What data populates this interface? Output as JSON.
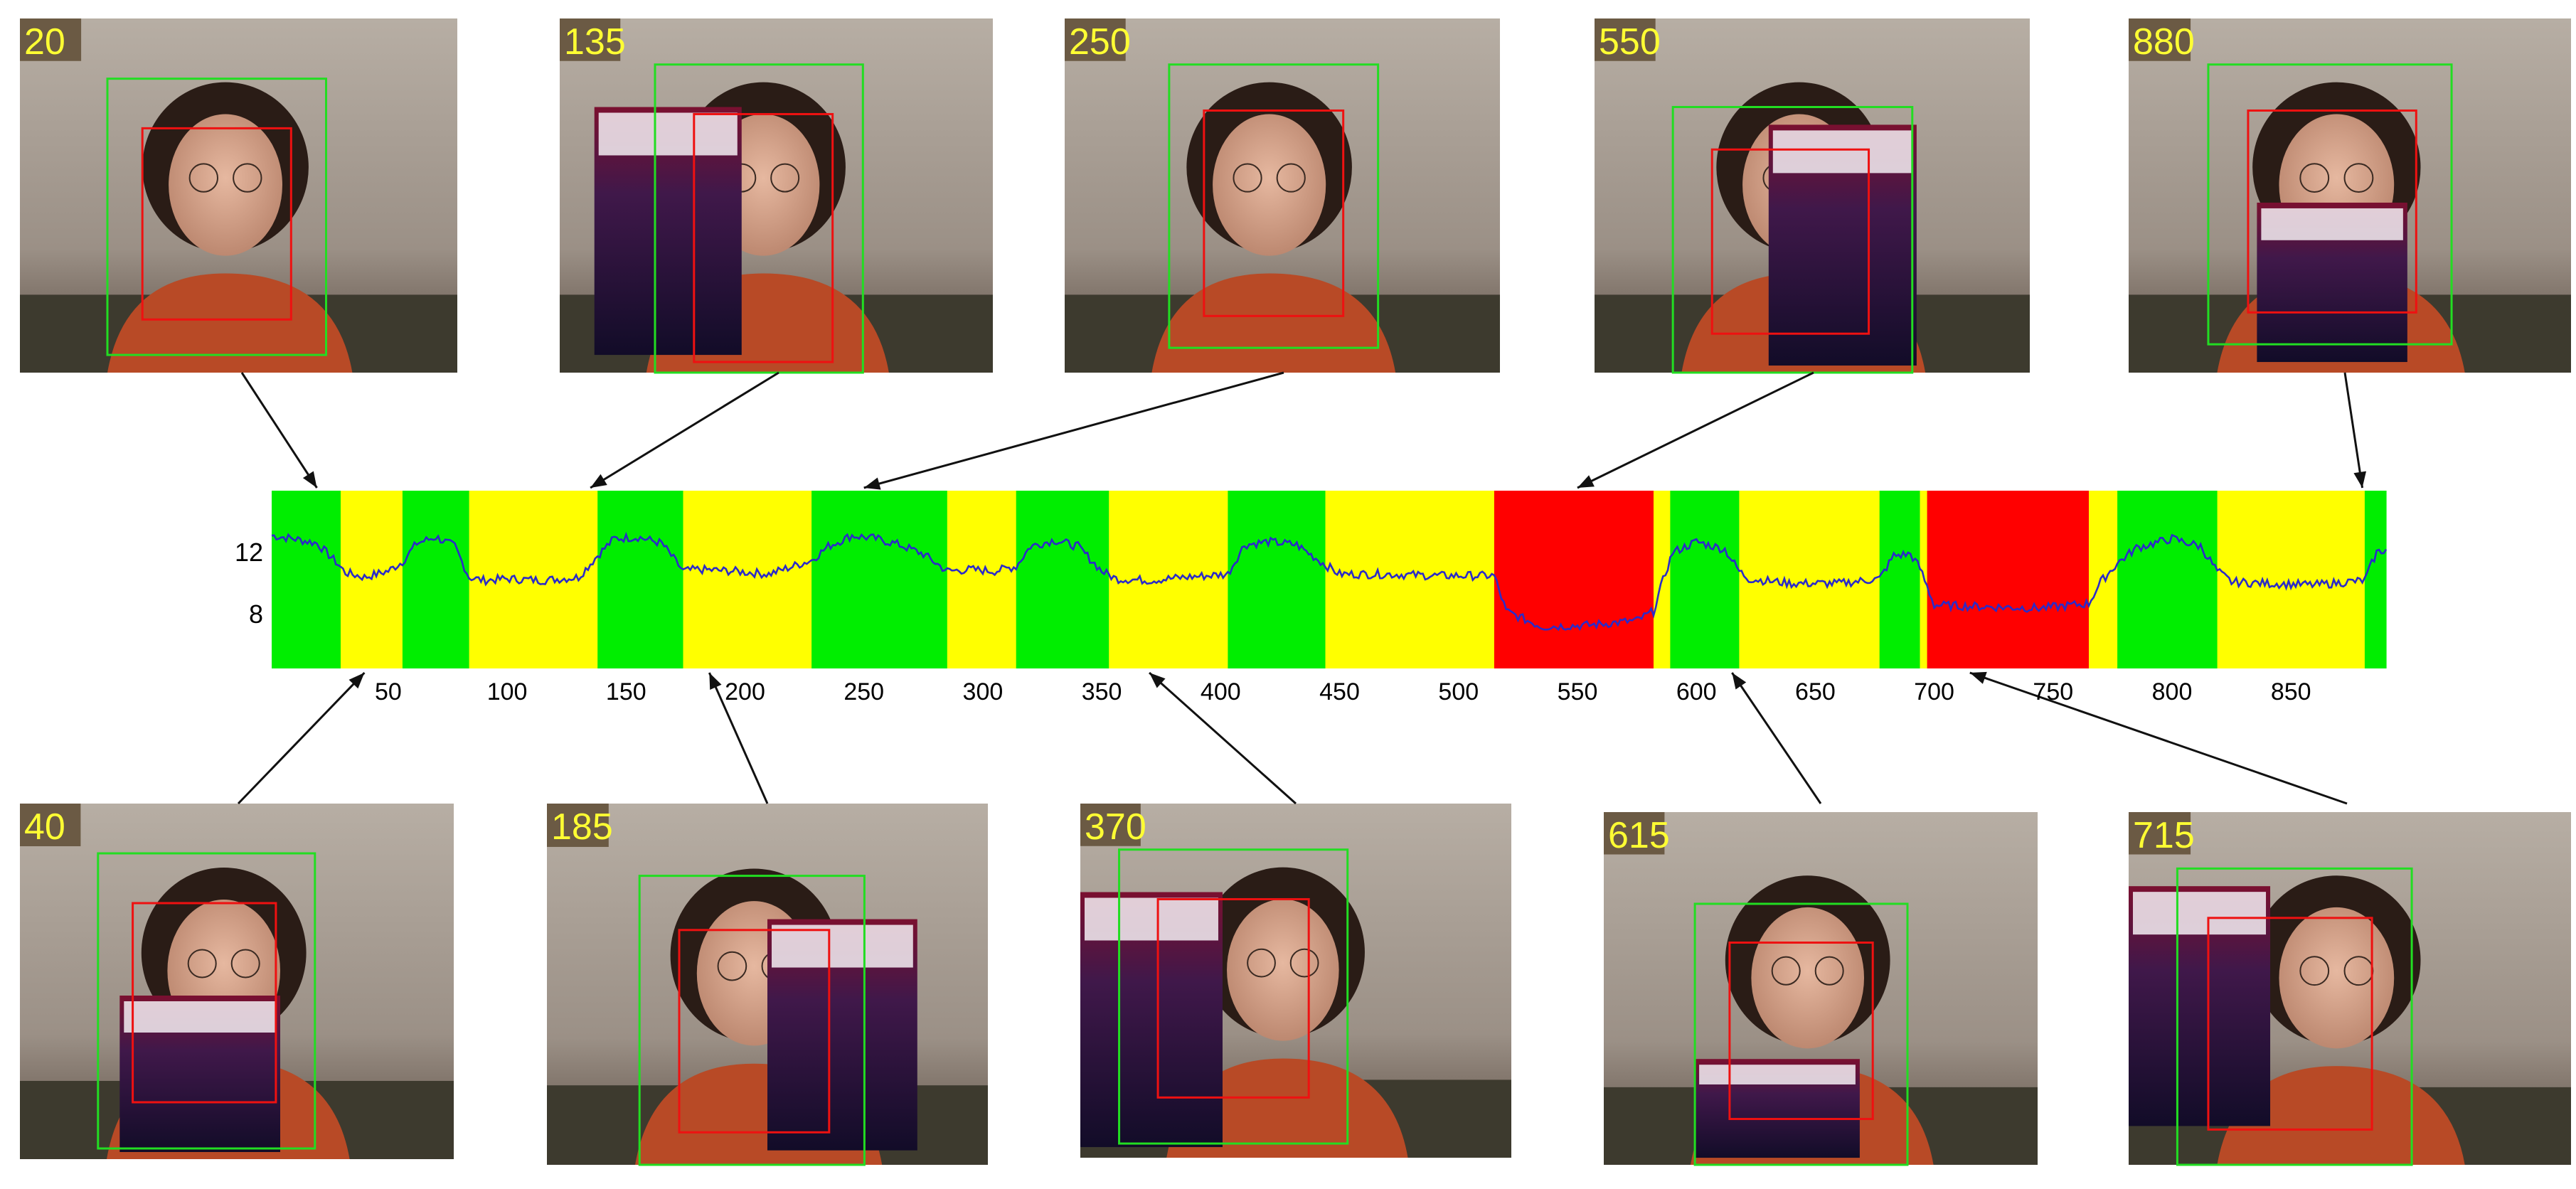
{
  "chart_data": {
    "type": "line",
    "title": "",
    "xlabel": "",
    "ylabel": "",
    "xlim": [
      1,
      890
    ],
    "ylim": [
      4.5,
      16
    ],
    "x_ticks": [
      50,
      100,
      150,
      200,
      250,
      300,
      350,
      400,
      450,
      500,
      550,
      600,
      650,
      700,
      750,
      800,
      850
    ],
    "y_ticks": [
      8,
      12
    ],
    "grid": false,
    "legend": "none",
    "colors": {
      "green": "#00ee00",
      "yellow": "#ffff00",
      "red": "#ff0000",
      "line": "#2b2bc8"
    },
    "segments": [
      {
        "start": 1,
        "end": 30,
        "color": "green"
      },
      {
        "start": 30,
        "end": 56,
        "color": "yellow"
      },
      {
        "start": 56,
        "end": 84,
        "color": "green"
      },
      {
        "start": 84,
        "end": 138,
        "color": "yellow"
      },
      {
        "start": 138,
        "end": 174,
        "color": "green"
      },
      {
        "start": 174,
        "end": 228,
        "color": "yellow"
      },
      {
        "start": 228,
        "end": 285,
        "color": "green"
      },
      {
        "start": 285,
        "end": 314,
        "color": "yellow"
      },
      {
        "start": 314,
        "end": 353,
        "color": "green"
      },
      {
        "start": 353,
        "end": 403,
        "color": "yellow"
      },
      {
        "start": 403,
        "end": 444,
        "color": "green"
      },
      {
        "start": 444,
        "end": 515,
        "color": "yellow"
      },
      {
        "start": 515,
        "end": 582,
        "color": "red"
      },
      {
        "start": 582,
        "end": 589,
        "color": "yellow"
      },
      {
        "start": 589,
        "end": 618,
        "color": "green"
      },
      {
        "start": 618,
        "end": 677,
        "color": "yellow"
      },
      {
        "start": 677,
        "end": 694,
        "color": "green"
      },
      {
        "start": 694,
        "end": 697,
        "color": "yellow"
      },
      {
        "start": 697,
        "end": 765,
        "color": "red"
      },
      {
        "start": 765,
        "end": 777,
        "color": "yellow"
      },
      {
        "start": 777,
        "end": 819,
        "color": "green"
      },
      {
        "start": 819,
        "end": 881,
        "color": "yellow"
      },
      {
        "start": 881,
        "end": 890,
        "color": "green"
      }
    ],
    "series": [
      {
        "x": [
          1,
          10,
          20,
          28,
          32,
          40,
          50,
          56,
          62,
          70,
          78,
          84,
          90,
          100,
          115,
          130,
          138,
          145,
          155,
          165,
          174,
          180,
          195,
          210,
          228,
          235,
          245,
          255,
          265,
          275,
          285,
          295,
          305,
          314,
          320,
          330,
          340,
          350,
          356,
          370,
          385,
          403,
          410,
          420,
          432,
          444,
          450,
          470,
          490,
          515,
          520,
          535,
          555,
          575,
          582,
          586,
          590,
          600,
          612,
          618,
          622,
          640,
          660,
          677,
          683,
          690,
          694,
          700,
          720,
          745,
          765,
          770,
          777,
          785,
          800,
          812,
          819,
          825,
          840,
          860,
          881,
          886,
          890
        ],
        "y": [
          13.1,
          12.9,
          12.6,
          11.4,
          10.7,
          10.4,
          10.8,
          11.4,
          12.6,
          13.0,
          12.4,
          10.4,
          10.2,
          10.3,
          10.2,
          10.4,
          11.8,
          12.9,
          13.0,
          12.6,
          10.8,
          10.9,
          10.8,
          10.6,
          11.5,
          12.4,
          13.1,
          12.9,
          12.5,
          11.9,
          10.8,
          10.9,
          10.8,
          11.1,
          12.4,
          12.8,
          12.4,
          10.8,
          10.3,
          10.2,
          10.4,
          10.6,
          12.5,
          12.7,
          12.5,
          11.2,
          10.6,
          10.6,
          10.5,
          10.5,
          8.2,
          7.2,
          7.3,
          7.6,
          8.2,
          10.2,
          12.0,
          12.7,
          12.2,
          10.8,
          10.3,
          10.0,
          10.0,
          10.3,
          11.8,
          11.9,
          11.0,
          8.6,
          8.5,
          8.4,
          8.7,
          10.1,
          11.3,
          12.3,
          12.9,
          12.4,
          10.8,
          10.1,
          10.0,
          9.9,
          10.2,
          12.0,
          12.2
        ]
      }
    ],
    "thumbnails": [
      {
        "frame": "20",
        "row": "top"
      },
      {
        "frame": "135",
        "row": "top"
      },
      {
        "frame": "250",
        "row": "top"
      },
      {
        "frame": "550",
        "row": "top"
      },
      {
        "frame": "880",
        "row": "top"
      },
      {
        "frame": "40",
        "row": "bottom"
      },
      {
        "frame": "185",
        "row": "bottom"
      },
      {
        "frame": "370",
        "row": "bottom"
      },
      {
        "frame": "615",
        "row": "bottom"
      },
      {
        "frame": "715",
        "row": "bottom"
      }
    ]
  }
}
